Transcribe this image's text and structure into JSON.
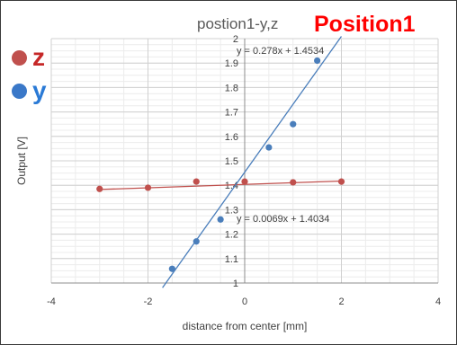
{
  "chart_data": {
    "type": "scatter",
    "title": "postion1-y,z",
    "overlay_title": "Position1",
    "xlabel": "distance from center [mm]",
    "ylabel": "Output [V]",
    "xlim": [
      -4,
      4
    ],
    "ylim": [
      1.0,
      2.0
    ],
    "x_ticks": [
      "-4",
      "-2",
      "0",
      "2",
      "4"
    ],
    "y_ticks": [
      "1",
      "1.1",
      "1.2",
      "1.3",
      "1.4",
      "1.5",
      "1.6",
      "1.7",
      "1.8",
      "1.9",
      "2"
    ],
    "grid": true,
    "legend_position": "top-left",
    "series": [
      {
        "name": "z",
        "color": "#c0504d",
        "points": [
          {
            "x": -3.0,
            "y": 1.385
          },
          {
            "x": -2.0,
            "y": 1.39
          },
          {
            "x": -1.0,
            "y": 1.415
          },
          {
            "x": 0.0,
            "y": 1.415
          },
          {
            "x": 1.0,
            "y": 1.412
          },
          {
            "x": 2.0,
            "y": 1.415
          }
        ],
        "trendline": {
          "slope": 0.0069,
          "intercept": 1.4034,
          "x_range": [
            -3,
            2
          ],
          "label": "y = 0.0069x + 1.4034"
        }
      },
      {
        "name": "y",
        "color": "#4a7ebb",
        "points": [
          {
            "x": -1.5,
            "y": 1.058
          },
          {
            "x": -1.0,
            "y": 1.17
          },
          {
            "x": -0.5,
            "y": 1.26
          },
          {
            "x": 0.5,
            "y": 1.555
          },
          {
            "x": 1.0,
            "y": 1.65
          },
          {
            "x": 1.5,
            "y": 1.91
          }
        ],
        "trendline": {
          "slope": 0.278,
          "intercept": 1.4534,
          "x_range": [
            -1.7,
            2.0
          ],
          "label": "y = 0.278x + 1.4534"
        }
      }
    ]
  },
  "legend": {
    "items": [
      {
        "label": "z",
        "color": "#c0504d",
        "text_color": "#c62828"
      },
      {
        "label": "y",
        "color": "#3a78c8",
        "text_color": "#2a7ad6"
      }
    ]
  }
}
